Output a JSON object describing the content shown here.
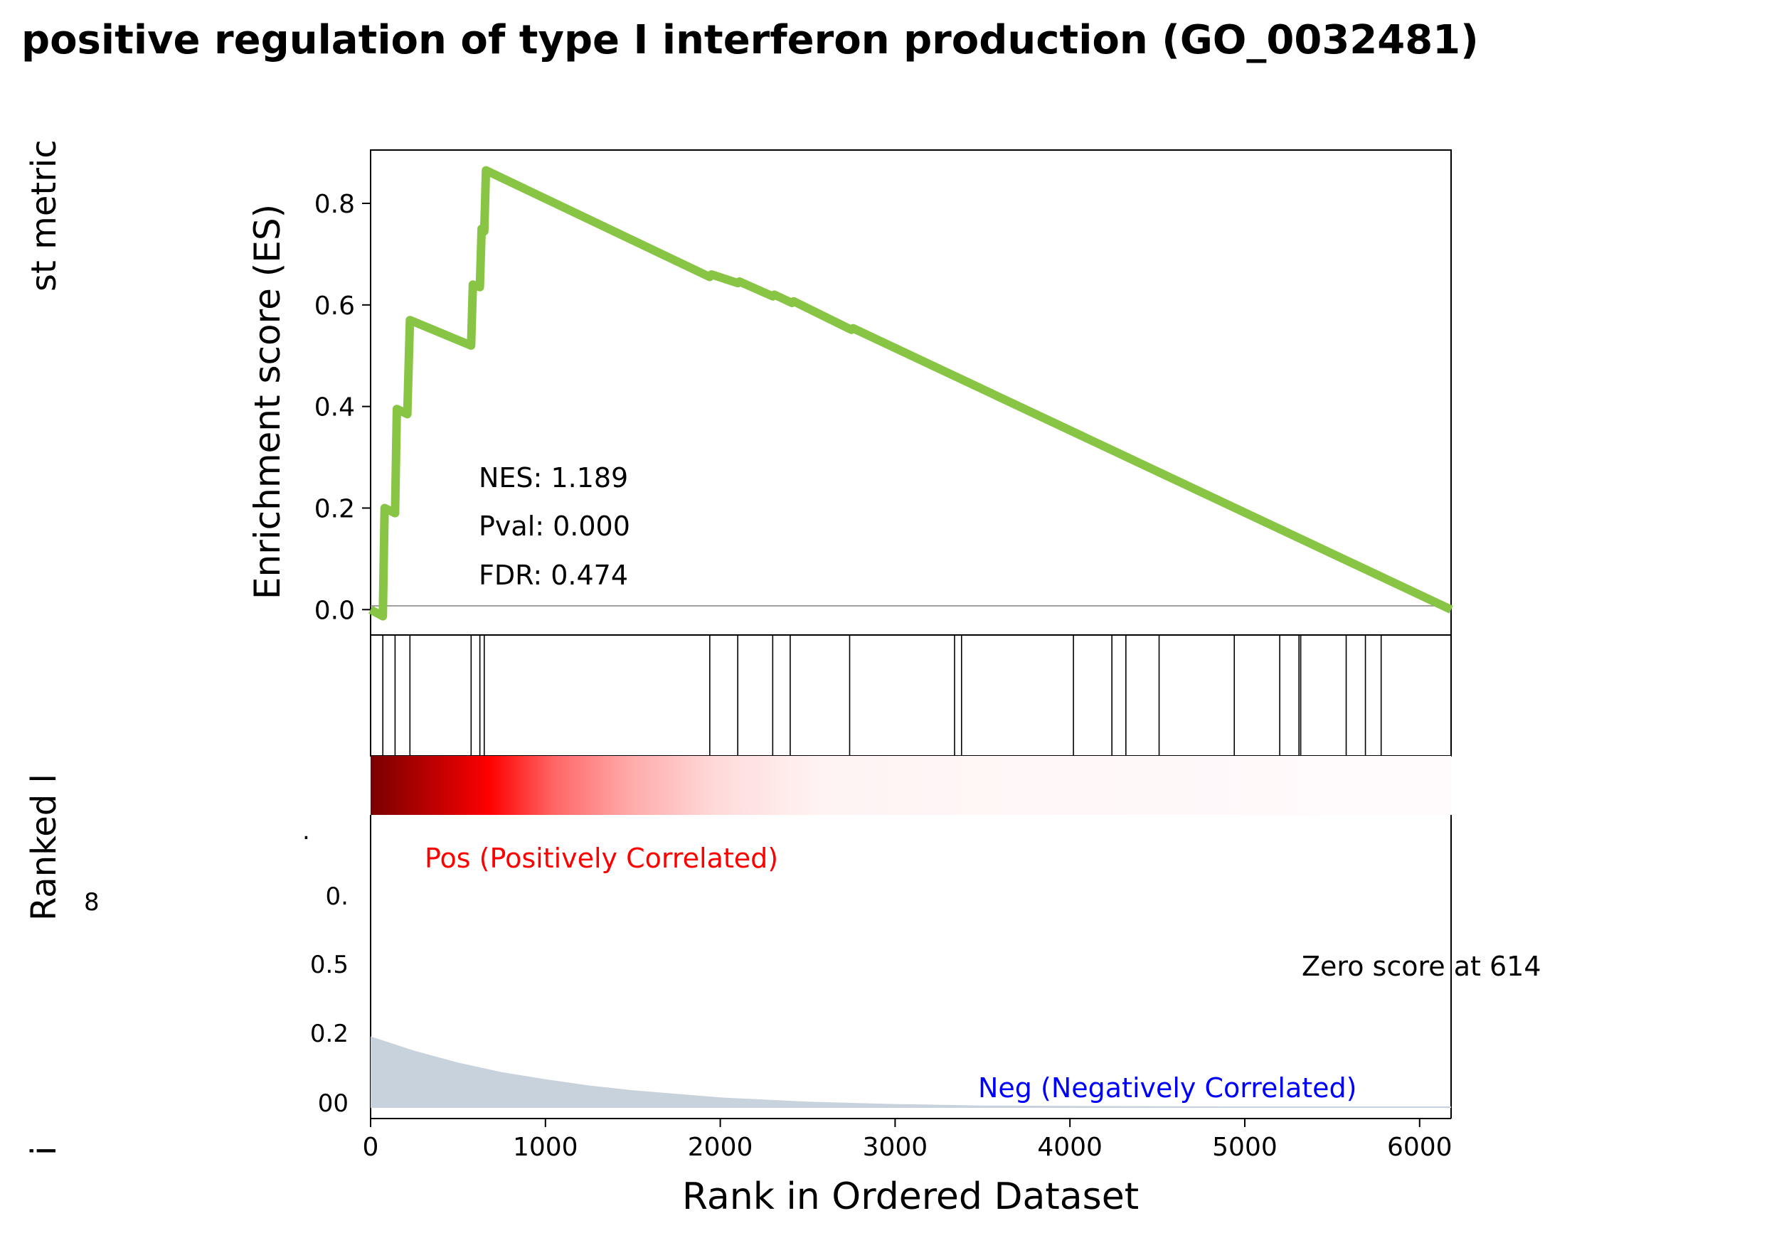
{
  "chart_data": {
    "type": "line",
    "title": "positive regulation of type I interferon production (GO_0032481)",
    "xlabel": "Rank in Ordered Dataset",
    "es_ylabel": "Enrichment score (ES)",
    "rank_ylabel_fragments": [
      "st metric",
      "Ranked  l",
      "i"
    ],
    "stats": {
      "nes": "NES: 1.189",
      "pval": "Pval: 0.000",
      "fdr": "FDR: 0.474"
    },
    "pos_label": "Pos (Positively Correlated)",
    "neg_label": "Neg (Negatively Correlated)",
    "zero_score_label": "Zero score at 614",
    "xlim": [
      0,
      6180
    ],
    "es_ylim": [
      -0.05,
      0.905
    ],
    "x_ticks": [
      "0",
      "1000",
      "2000",
      "3000",
      "4000",
      "5000",
      "6000"
    ],
    "es_ticks": [
      "0.0",
      "0.2",
      "0.4",
      "0.6",
      "0.8"
    ],
    "rank_ticks": [
      "00",
      "0.2",
      "0.5",
      "0."
    ],
    "rank_tick_fragments": [
      ".",
      "8"
    ],
    "es_series": {
      "name": "",
      "x": [
        0,
        70,
        80,
        140,
        150,
        210,
        225,
        575,
        585,
        625,
        635,
        650,
        660,
        1940,
        1950,
        2100,
        2110,
        2300,
        2310,
        2410,
        2420,
        2750,
        2760,
        6180
      ],
      "y": [
        0.0,
        -0.013,
        0.2,
        0.19,
        0.395,
        0.385,
        0.57,
        0.52,
        0.64,
        0.635,
        0.75,
        0.745,
        0.865,
        0.655,
        0.66,
        0.643,
        0.646,
        0.617,
        0.62,
        0.604,
        0.607,
        0.551,
        0.554,
        0.0
      ]
    },
    "hits": [
      70,
      140,
      225,
      575,
      625,
      650,
      1940,
      2100,
      2300,
      2400,
      2740,
      3340,
      3380,
      4020,
      4240,
      4320,
      4510,
      4940,
      5200,
      5310,
      5320,
      5580,
      5690,
      5780
    ],
    "ranked_metric": {
      "x": [
        0,
        250,
        500,
        750,
        1000,
        1250,
        1500,
        2000,
        2500,
        3000,
        3500,
        4000,
        5000,
        6180
      ],
      "y": [
        0.15,
        0.12,
        0.095,
        0.075,
        0.06,
        0.047,
        0.037,
        0.022,
        0.013,
        0.008,
        0.005,
        0.004,
        0.003,
        0.003
      ]
    },
    "colors": {
      "es_line": "#88c544",
      "ranked_fill": "#c8d2dc",
      "pos_text": "#ff0000",
      "neg_text": "#0000ff",
      "zero_line": "#808080"
    }
  }
}
